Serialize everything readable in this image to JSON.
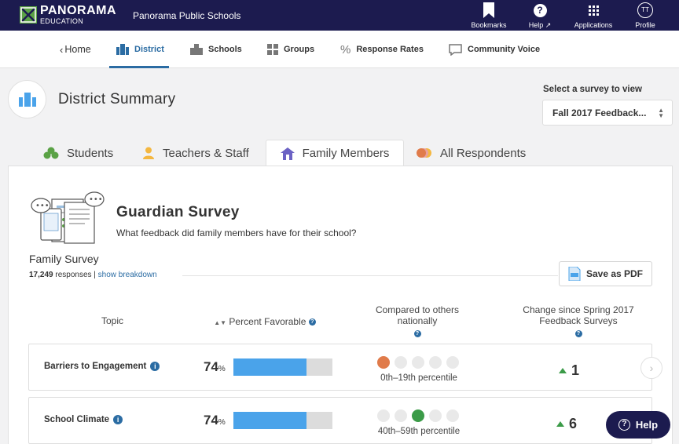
{
  "topbar": {
    "brand_main": "PANORAMA",
    "brand_sub": "EDUCATION",
    "org_name": "Panorama Public Schools",
    "nav": [
      {
        "label": "Bookmarks",
        "icon": "bookmark-icon"
      },
      {
        "label": "Help ↗",
        "icon": "help-icon"
      },
      {
        "label": "Applications",
        "icon": "apps-grid-icon"
      },
      {
        "label": "Profile",
        "icon": "avatar",
        "initials": "TT"
      }
    ]
  },
  "subnav": {
    "home": "Home",
    "items": [
      {
        "label": "District",
        "icon": "district-icon"
      },
      {
        "label": "Schools",
        "icon": "school-icon"
      },
      {
        "label": "Groups",
        "icon": "groups-icon"
      },
      {
        "label": "Response Rates",
        "icon": "percent-icon"
      },
      {
        "label": "Community Voice",
        "icon": "chat-icon"
      }
    ]
  },
  "page": {
    "title": "District Summary",
    "survey_select_label": "Select a survey to view",
    "survey_select_value": "Fall 2017 Feedback..."
  },
  "tabs": [
    {
      "label": "Students",
      "icon": "students-icon"
    },
    {
      "label": "Teachers & Staff",
      "icon": "person-icon"
    },
    {
      "label": "Family Members",
      "icon": "house-icon",
      "active": true
    },
    {
      "label": "All Respondents",
      "icon": "respondents-icon"
    }
  ],
  "survey": {
    "title": "Guardian Survey",
    "subtitle": "What feedback did family members have for their school?",
    "family_title": "Family Survey",
    "response_count": "17,249",
    "responses_word": "responses",
    "breakdown_link": "show breakdown",
    "pdf_label": "Save as PDF"
  },
  "columns": {
    "topic": "Topic",
    "percent": "Percent Favorable",
    "compared_1": "Compared to others",
    "compared_2": "nationally",
    "change_1": "Change since Spring 2017",
    "change_2": "Feedback Surveys"
  },
  "rows": [
    {
      "topic": "Barriers to Engagement",
      "percent": "74",
      "percent_unit": "%",
      "fill_fraction": 0.74,
      "highlight_dot": 1,
      "highlight_color": "#e07b4a",
      "percentile": "0th–19th percentile",
      "change": "1"
    },
    {
      "topic": "School Climate",
      "percent": "74",
      "percent_unit": "%",
      "fill_fraction": 0.74,
      "highlight_dot": 3,
      "highlight_color": "#3b9b48",
      "percentile": "40th–59th percentile",
      "change": "6"
    }
  ],
  "help_button": "Help",
  "colors": {
    "navy": "#1c1b4f",
    "link_blue": "#2b6ca3",
    "bar_blue": "#4aa3ea",
    "green": "#3b9b48",
    "orange": "#e07b4a"
  }
}
